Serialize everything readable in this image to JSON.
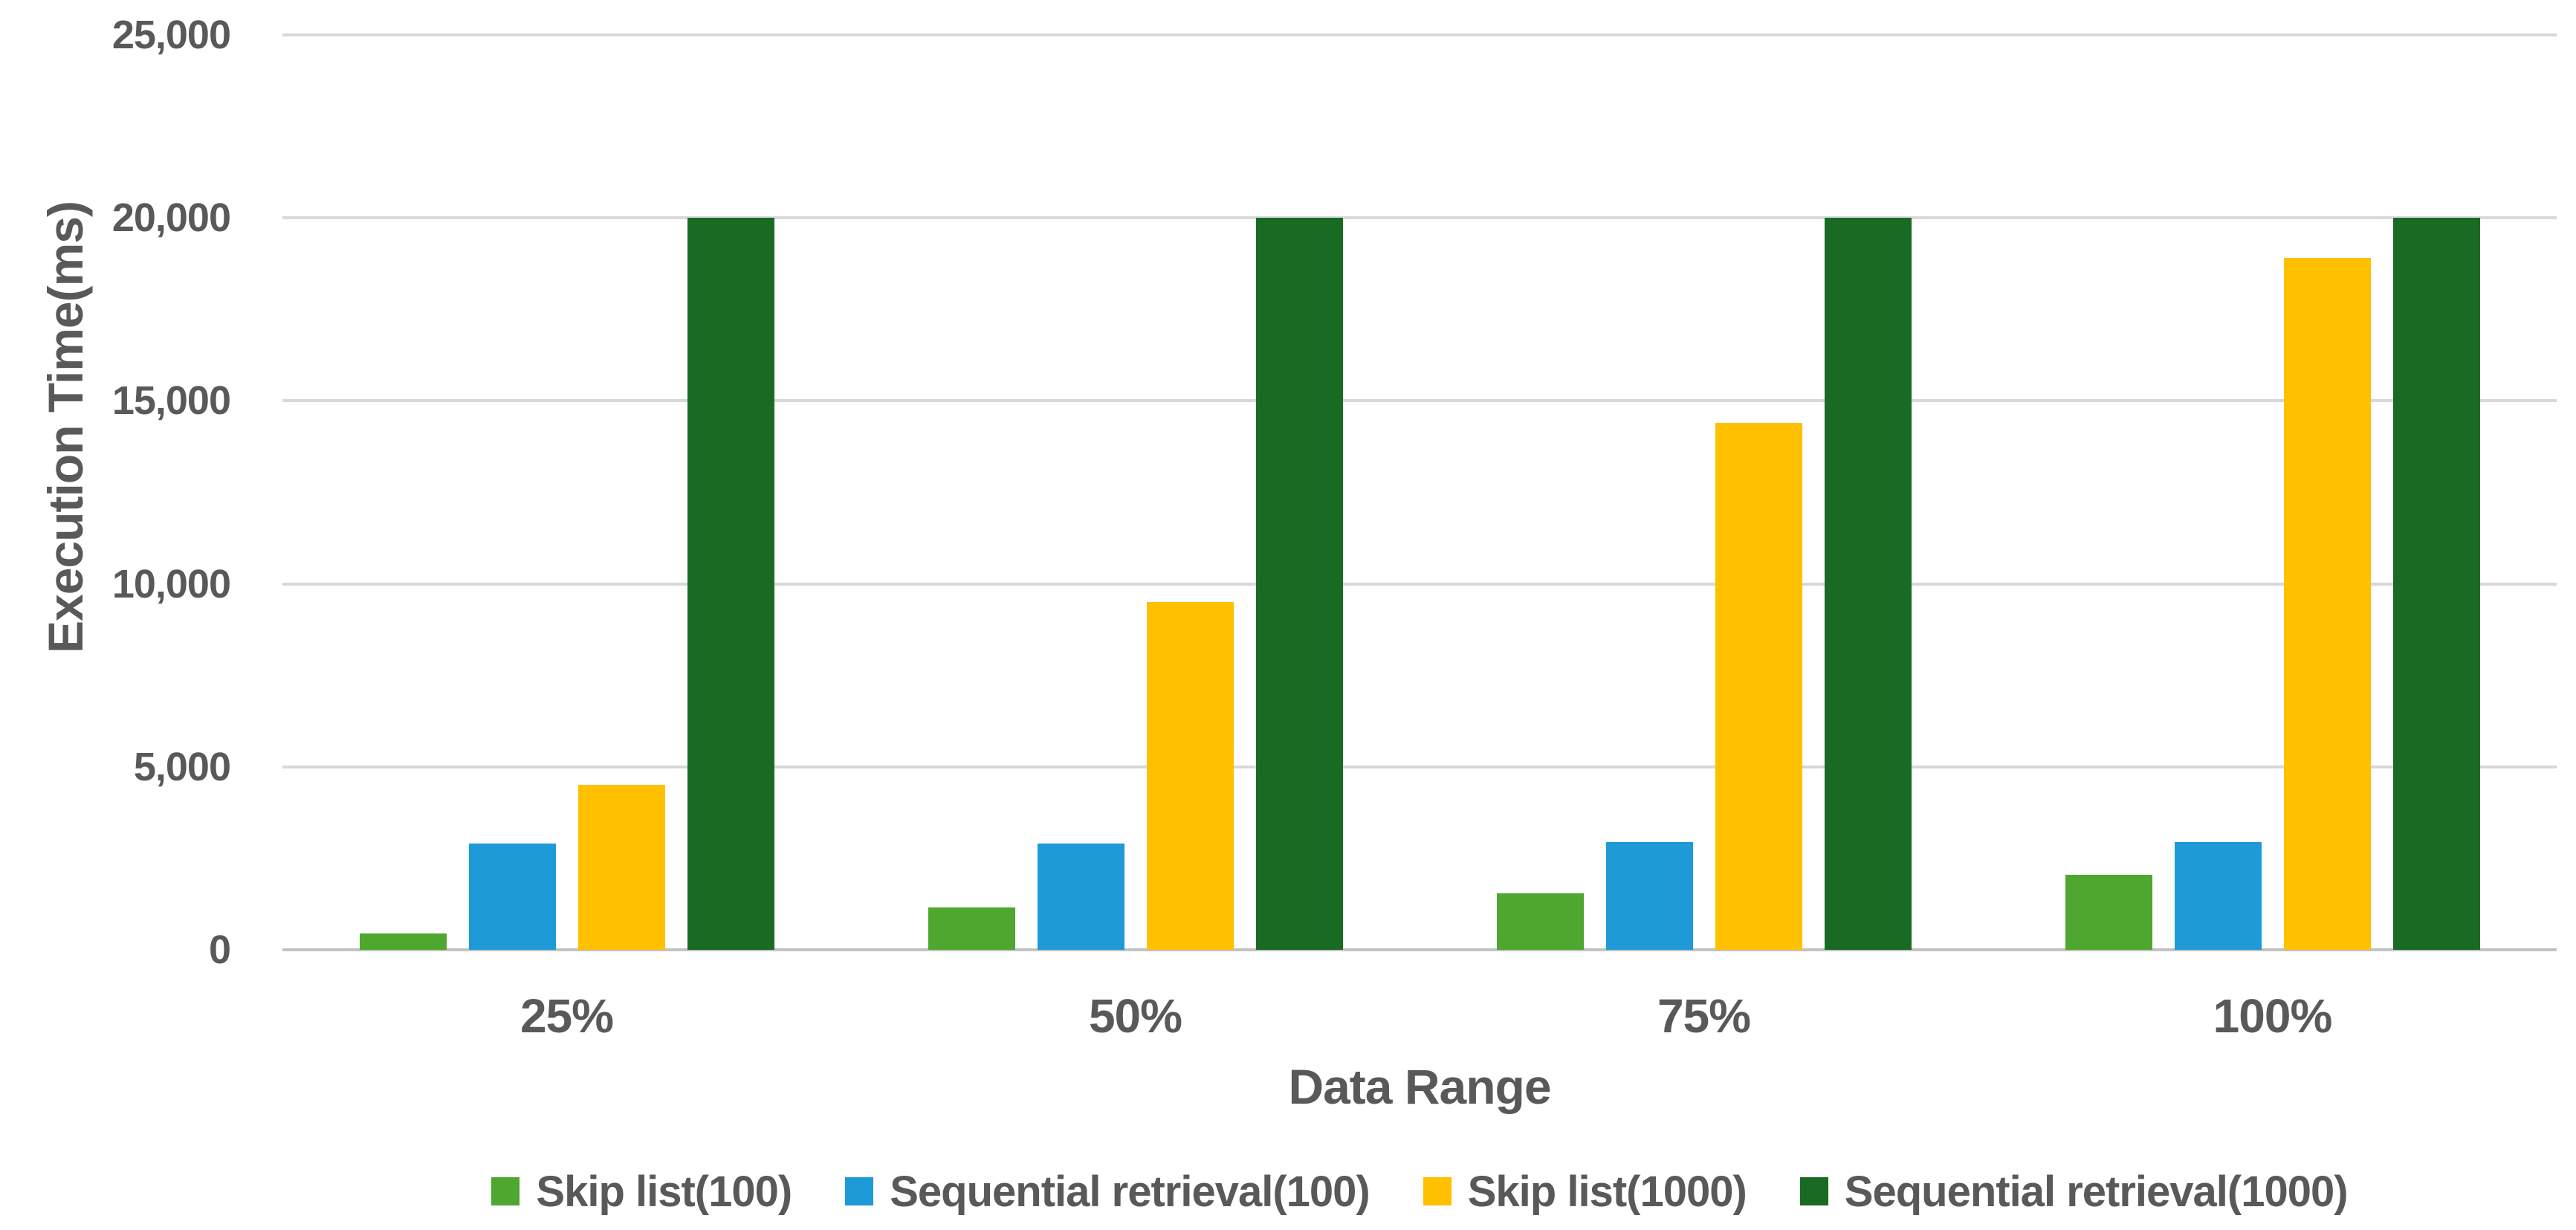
{
  "chart_data": {
    "type": "bar",
    "categories": [
      "25%",
      "50%",
      "75%",
      "100%"
    ],
    "series": [
      {
        "name": "Skip list(100)",
        "color": "#4EA72E",
        "values": [
          450,
          1150,
          1550,
          2050
        ]
      },
      {
        "name": "Sequential retrieval(100)",
        "color": "#1E9AD6",
        "values": [
          2900,
          2900,
          2950,
          2950
        ]
      },
      {
        "name": "Skip list(1000)",
        "color": "#FFC000",
        "values": [
          4500,
          9500,
          14400,
          18900
        ]
      },
      {
        "name": "Sequential retrieval(1000)",
        "color": "#196B24",
        "values": [
          20000,
          20000,
          20000,
          20000
        ]
      }
    ],
    "title": "",
    "xlabel": "Data Range",
    "ylabel": "Execution Time(ms)",
    "ylim": [
      0,
      25000
    ],
    "ytick_step": 5000,
    "ytick_labels": [
      "0",
      "5,000",
      "10,000",
      "15,000",
      "20,000",
      "25,000"
    ],
    "grid": true,
    "legend_position": "bottom"
  },
  "colors": {
    "text": "#595959",
    "gridline": "#D8D8D8",
    "baseline": "#C2C2C2",
    "background": "#FFFFFF"
  }
}
